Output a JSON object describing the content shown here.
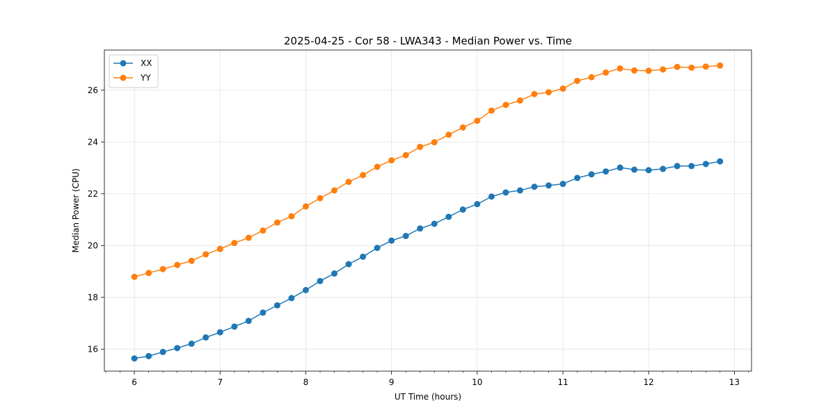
{
  "chart_data": {
    "type": "line",
    "title": "2025-04-25 - Cor 58 - LWA343 - Median Power vs. Time",
    "xlabel": "UT Time (hours)",
    "ylabel": "Median Power (CPU)",
    "xlim": [
      5.65,
      13.2
    ],
    "ylim": [
      15.15,
      27.55
    ],
    "xticks": [
      6,
      7,
      8,
      9,
      10,
      11,
      12,
      13
    ],
    "xtick_labels": [
      "6",
      "7",
      "8",
      "9",
      "10",
      "11",
      "12",
      "13"
    ],
    "yticks": [
      16,
      18,
      20,
      22,
      24,
      26
    ],
    "ytick_labels": [
      "16",
      "18",
      "20",
      "22",
      "24",
      "26"
    ],
    "grid": true,
    "legend_position": "top-left",
    "x": [
      6.0,
      6.167,
      6.333,
      6.5,
      6.667,
      6.833,
      7.0,
      7.167,
      7.333,
      7.5,
      7.667,
      7.833,
      8.0,
      8.167,
      8.333,
      8.5,
      8.667,
      8.833,
      9.0,
      9.167,
      9.333,
      9.5,
      9.667,
      9.833,
      10.0,
      10.167,
      10.333,
      10.5,
      10.667,
      10.833,
      11.0,
      11.167,
      11.333,
      11.5,
      11.667,
      11.833,
      12.0,
      12.167,
      12.333,
      12.5,
      12.667,
      12.833
    ],
    "series": [
      {
        "name": "XX",
        "color": "#1f77b4",
        "values": [
          15.64,
          15.73,
          15.89,
          16.04,
          16.21,
          16.45,
          16.65,
          16.87,
          17.09,
          17.41,
          17.69,
          17.97,
          18.28,
          18.63,
          18.92,
          19.28,
          19.57,
          19.91,
          20.19,
          20.37,
          20.66,
          20.84,
          21.11,
          21.39,
          21.6,
          21.89,
          22.05,
          22.13,
          22.27,
          22.32,
          22.38,
          22.61,
          22.75,
          22.86,
          23.01,
          22.93,
          22.91,
          22.96,
          23.07,
          23.07,
          23.15,
          23.25
        ]
      },
      {
        "name": "YY",
        "color": "#ff7f0e",
        "values": [
          18.79,
          18.94,
          19.09,
          19.25,
          19.41,
          19.66,
          19.87,
          20.1,
          20.3,
          20.58,
          20.89,
          21.13,
          21.51,
          21.83,
          22.13,
          22.46,
          22.72,
          23.04,
          23.29,
          23.49,
          23.81,
          23.99,
          24.28,
          24.56,
          24.82,
          25.21,
          25.43,
          25.6,
          25.85,
          25.92,
          26.06,
          26.36,
          26.5,
          26.68,
          26.84,
          26.76,
          26.75,
          26.8,
          26.9,
          26.87,
          26.91,
          26.95
        ]
      }
    ]
  }
}
